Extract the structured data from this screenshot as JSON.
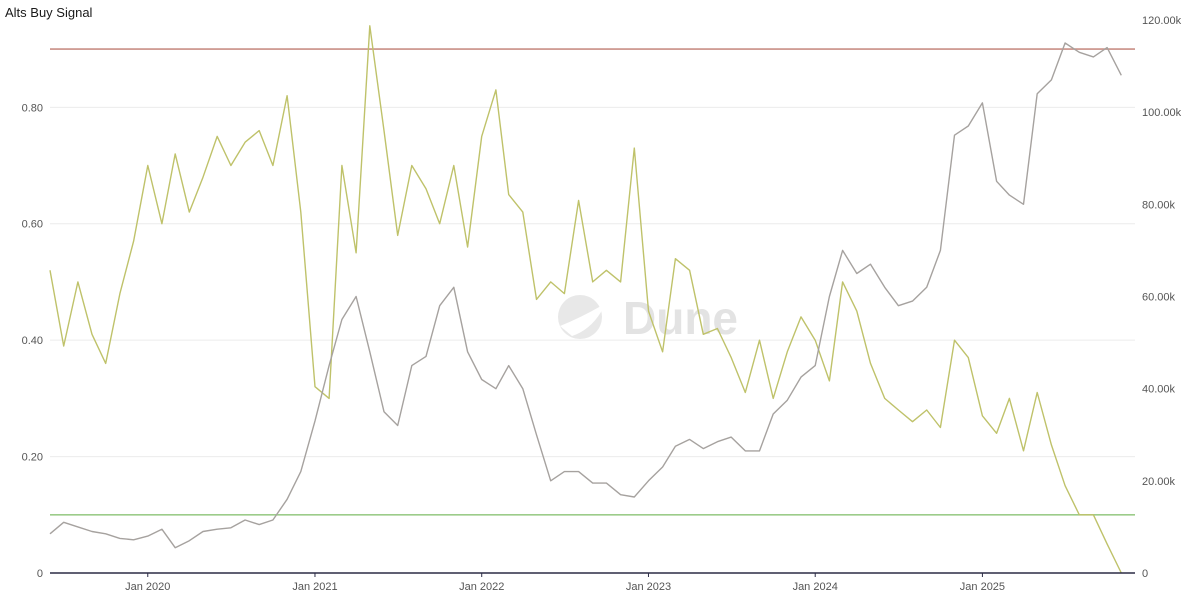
{
  "page": {
    "title": "Alts Buy Signal"
  },
  "watermark": {
    "text": "Dune"
  },
  "colors": {
    "signal": "#bfc26a",
    "price": "#a6a29f",
    "upper_line": "#c98f86",
    "lower_line": "#9ccc8a",
    "grid": "#ececec",
    "axis": "#2b2b45"
  },
  "chart_data": {
    "type": "line",
    "title": "Alts Buy Signal",
    "xlabel": "",
    "ylabel": "",
    "y2label": "",
    "x_range": [
      "2019-06-01",
      "2025-12-01"
    ],
    "ylim": [
      0,
      0.95
    ],
    "y2lim": [
      0,
      120000
    ],
    "x_ticks": [
      "Jan 2020",
      "Jan 2021",
      "Jan 2022",
      "Jan 2023",
      "Jan 2024",
      "Jan 2025"
    ],
    "y_ticks": [
      "0",
      "0.20",
      "0.40",
      "0.60",
      "0.80"
    ],
    "y_tick_values": [
      0,
      0.2,
      0.4,
      0.6,
      0.8
    ],
    "y2_ticks": [
      "0",
      "20.00k",
      "40.00k",
      "60.00k",
      "80.00k",
      "100.00k",
      "120.00k"
    ],
    "y2_tick_values": [
      0,
      20000,
      40000,
      60000,
      80000,
      100000,
      120000
    ],
    "reference_lines": [
      {
        "axis": "left",
        "value": 0.9,
        "color": "#c98f86"
      },
      {
        "axis": "left",
        "value": 0.1,
        "color": "#9ccc8a"
      }
    ],
    "grid": true,
    "series": [
      {
        "axis": "left",
        "color": "#bfc26a",
        "x": [
          "2019-06-01",
          "2019-07-01",
          "2019-08-01",
          "2019-09-01",
          "2019-10-01",
          "2019-11-01",
          "2019-12-01",
          "2020-01-01",
          "2020-02-01",
          "2020-03-01",
          "2020-04-01",
          "2020-05-01",
          "2020-06-01",
          "2020-07-01",
          "2020-08-01",
          "2020-09-01",
          "2020-10-01",
          "2020-11-01",
          "2020-12-01",
          "2021-01-01",
          "2021-02-01",
          "2021-03-01",
          "2021-04-01",
          "2021-05-01",
          "2021-06-01",
          "2021-07-01",
          "2021-08-01",
          "2021-09-01",
          "2021-10-01",
          "2021-11-01",
          "2021-12-01",
          "2022-01-01",
          "2022-02-01",
          "2022-03-01",
          "2022-04-01",
          "2022-05-01",
          "2022-06-01",
          "2022-07-01",
          "2022-08-01",
          "2022-09-01",
          "2022-10-01",
          "2022-11-01",
          "2022-12-01",
          "2023-01-01",
          "2023-02-01",
          "2023-03-01",
          "2023-04-01",
          "2023-05-01",
          "2023-06-01",
          "2023-07-01",
          "2023-08-01",
          "2023-09-01",
          "2023-10-01",
          "2023-11-01",
          "2023-12-01",
          "2024-01-01",
          "2024-02-01",
          "2024-03-01",
          "2024-04-01",
          "2024-05-01",
          "2024-06-01",
          "2024-07-01",
          "2024-08-01",
          "2024-09-01",
          "2024-10-01",
          "2024-11-01",
          "2024-12-01",
          "2025-01-01",
          "2025-02-01",
          "2025-03-01",
          "2025-04-01",
          "2025-05-01",
          "2025-06-01",
          "2025-07-01",
          "2025-08-01",
          "2025-09-01",
          "2025-10-01",
          "2025-11-01"
        ],
        "values": [
          0.52,
          0.39,
          0.5,
          0.41,
          0.36,
          0.48,
          0.57,
          0.7,
          0.6,
          0.72,
          0.62,
          0.68,
          0.75,
          0.7,
          0.74,
          0.76,
          0.7,
          0.82,
          0.62,
          0.32,
          0.3,
          0.7,
          0.55,
          0.94,
          0.76,
          0.58,
          0.7,
          0.66,
          0.6,
          0.7,
          0.56,
          0.75,
          0.83,
          0.65,
          0.62,
          0.47,
          0.5,
          0.48,
          0.64,
          0.5,
          0.52,
          0.5,
          0.73,
          0.45,
          0.38,
          0.54,
          0.52,
          0.41,
          0.42,
          0.37,
          0.31,
          0.4,
          0.3,
          0.38,
          0.44,
          0.4,
          0.33,
          0.5,
          0.45,
          0.36,
          0.3,
          0.28,
          0.26,
          0.28,
          0.25,
          0.4,
          0.37,
          0.27,
          0.24,
          0.3,
          0.21,
          0.31,
          0.22,
          0.15,
          0.1,
          0.1,
          0.05,
          0.0
        ]
      },
      {
        "axis": "right",
        "color": "#a6a29f",
        "x": [
          "2019-06-01",
          "2019-07-01",
          "2019-08-01",
          "2019-09-01",
          "2019-10-01",
          "2019-11-01",
          "2019-12-01",
          "2020-01-01",
          "2020-02-01",
          "2020-03-01",
          "2020-04-01",
          "2020-05-01",
          "2020-06-01",
          "2020-07-01",
          "2020-08-01",
          "2020-09-01",
          "2020-10-01",
          "2020-11-01",
          "2020-12-01",
          "2021-01-01",
          "2021-02-01",
          "2021-03-01",
          "2021-04-01",
          "2021-05-01",
          "2021-06-01",
          "2021-07-01",
          "2021-08-01",
          "2021-09-01",
          "2021-10-01",
          "2021-11-01",
          "2021-12-01",
          "2022-01-01",
          "2022-02-01",
          "2022-03-01",
          "2022-04-01",
          "2022-05-01",
          "2022-06-01",
          "2022-07-01",
          "2022-08-01",
          "2022-09-01",
          "2022-10-01",
          "2022-11-01",
          "2022-12-01",
          "2023-01-01",
          "2023-02-01",
          "2023-03-01",
          "2023-04-01",
          "2023-05-01",
          "2023-06-01",
          "2023-07-01",
          "2023-08-01",
          "2023-09-01",
          "2023-10-01",
          "2023-11-01",
          "2023-12-01",
          "2024-01-01",
          "2024-02-01",
          "2024-03-01",
          "2024-04-01",
          "2024-05-01",
          "2024-06-01",
          "2024-07-01",
          "2024-08-01",
          "2024-09-01",
          "2024-10-01",
          "2024-11-01",
          "2024-12-01",
          "2025-01-01",
          "2025-02-01",
          "2025-03-01",
          "2025-04-01",
          "2025-05-01",
          "2025-06-01",
          "2025-07-01",
          "2025-08-01",
          "2025-09-01",
          "2025-10-01",
          "2025-11-01"
        ],
        "values": [
          8500,
          11000,
          10000,
          9000,
          8500,
          7500,
          7200,
          8000,
          9500,
          5500,
          7000,
          9000,
          9500,
          9800,
          11500,
          10500,
          11500,
          16000,
          22000,
          33000,
          45000,
          55000,
          60000,
          48000,
          35000,
          32000,
          45000,
          47000,
          58000,
          62000,
          48000,
          42000,
          40000,
          45000,
          40000,
          30000,
          20000,
          22000,
          22000,
          19500,
          19500,
          17000,
          16500,
          20000,
          23000,
          27500,
          29000,
          27000,
          28500,
          29500,
          26500,
          26500,
          34500,
          37500,
          42500,
          45000,
          60000,
          70000,
          65000,
          67000,
          62000,
          58000,
          59000,
          62000,
          70000,
          95000,
          97000,
          102000,
          85000,
          82000,
          80000,
          104000,
          107000,
          115000,
          113000,
          112000,
          114000,
          108000
        ]
      }
    ]
  }
}
